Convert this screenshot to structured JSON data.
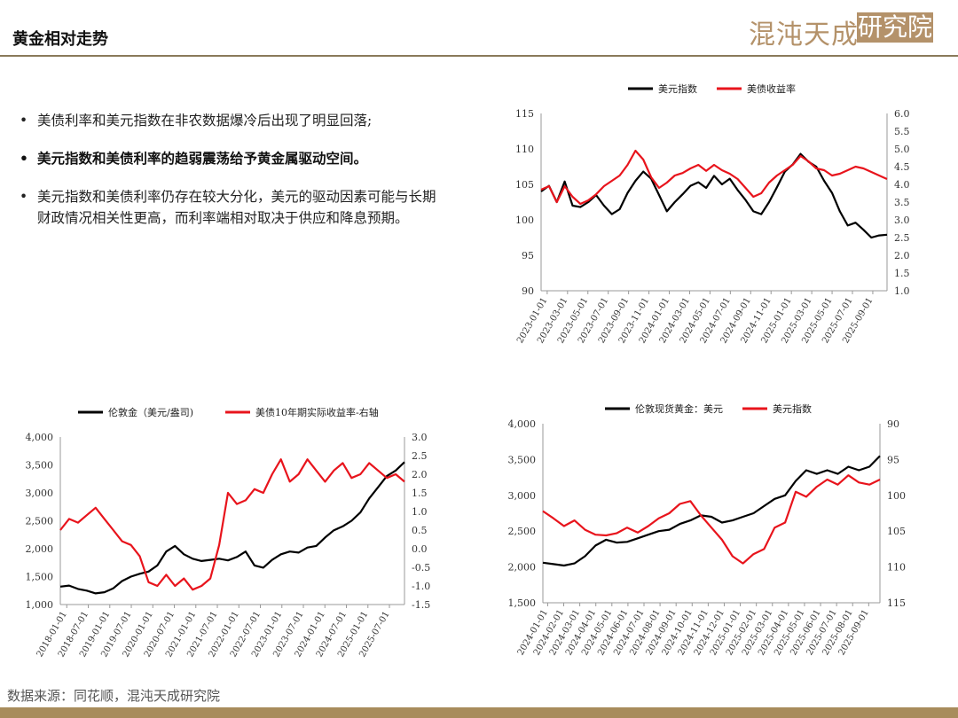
{
  "header": {
    "title": "黄金相对走势",
    "logo_left": "混沌天成",
    "logo_right": "研究院"
  },
  "bullets": [
    {
      "text": "美债利率和美元指数在非农数据爆冷后出现了明显回落;",
      "bold": false
    },
    {
      "text": "美元指数和美债利率的趋弱震荡给予黄金属驱动空间。",
      "bold": true
    },
    {
      "text": "美元指数和美债利率仍存在较大分化，美元的驱动因素可能与长期财政情况相关性更高，而利率端相对取决于供应和降息预期。",
      "bold": false
    }
  ],
  "bullet_marker": "•",
  "footer": {
    "source": "数据来源：同花顺，混沌天成研究院"
  },
  "colors": {
    "black_series": "#000000",
    "red_series": "#e8141c",
    "accent": "#a88c5c"
  },
  "chart_data": [
    {
      "id": "usd-vs-yield",
      "type": "line",
      "legend": [
        "美元指数",
        "美债收益率"
      ],
      "y_left": {
        "min": 90,
        "max": 115,
        "ticks": [
          "115",
          "110",
          "105",
          "100",
          "95",
          "90"
        ]
      },
      "y_right": {
        "min": 1.0,
        "max": 6.0,
        "ticks": [
          "6.0",
          "5.5",
          "5.0",
          "4.5",
          "4.0",
          "3.5",
          "3.0",
          "2.5",
          "2.0",
          "1.5",
          "1.0"
        ]
      },
      "x_labels": [
        "2023-01-01",
        "2023-03-01",
        "2023-05-01",
        "2023-07-01",
        "2023-09-01",
        "2023-11-01",
        "2024-01-01",
        "2024-03-01",
        "2024-05-01",
        "2024-07-01",
        "2024-09-01",
        "2024-11-01",
        "2025-01-01",
        "2025-03-01",
        "2025-05-01",
        "2025-07-01",
        "2025-09-01"
      ],
      "series": [
        {
          "name": "美元指数",
          "axis": "left",
          "values": [
            104,
            104.8,
            102.5,
            105.4,
            102,
            101.8,
            102.5,
            103.5,
            102,
            100.8,
            101.5,
            103.8,
            105.5,
            106.8,
            105.8,
            103.5,
            101.2,
            102.5,
            103.6,
            104.8,
            105.3,
            104.5,
            106.2,
            105,
            105.8,
            104.2,
            102.8,
            101.2,
            100.8,
            102.5,
            104.6,
            106.8,
            107.8,
            109.3,
            108.2,
            107.5,
            105.5,
            103.8,
            101.2,
            99.2,
            99.6,
            98.6,
            97.5,
            97.8,
            97.9
          ]
        },
        {
          "name": "美债收益率",
          "axis": "right",
          "values": [
            3.85,
            3.95,
            3.5,
            3.95,
            3.65,
            3.45,
            3.55,
            3.72,
            3.95,
            4.1,
            4.25,
            4.55,
            4.95,
            4.7,
            4.2,
            3.9,
            4.05,
            4.25,
            4.32,
            4.45,
            4.55,
            4.38,
            4.55,
            4.4,
            4.3,
            4.15,
            3.9,
            3.65,
            3.75,
            4.05,
            4.25,
            4.4,
            4.55,
            4.8,
            4.65,
            4.45,
            4.4,
            4.25,
            4.3,
            4.4,
            4.5,
            4.45,
            4.35,
            4.25,
            4.15
          ]
        }
      ]
    },
    {
      "id": "gold-vs-real-yield",
      "type": "line",
      "legend": [
        "伦敦金（美元/盎司)",
        "美债10年期实际收益率-右轴"
      ],
      "y_left": {
        "min": 1000,
        "max": 4000,
        "ticks": [
          "4,000",
          "3,500",
          "3,000",
          "2,500",
          "2,000",
          "1,500",
          "1,000"
        ]
      },
      "y_right": {
        "min": -1.5,
        "max": 3.0,
        "ticks": [
          "3.0",
          "2.5",
          "2.0",
          "1.5",
          "1.0",
          "0.5",
          "0.0",
          "-0.5",
          "-1.0",
          "-1.5"
        ]
      },
      "x_labels": [
        "2018-01-01",
        "2018-07-01",
        "2019-01-01",
        "2019-07-01",
        "2020-01-01",
        "2020-07-01",
        "2021-01-01",
        "2021-07-01",
        "2022-01-01",
        "2022-07-01",
        "2023-01-01",
        "2023-07-01",
        "2024-01-01",
        "2024-07-01",
        "2025-01-01",
        "2025-07-01"
      ],
      "series": [
        {
          "name": "伦敦金（美元/盎司)",
          "axis": "left",
          "values": [
            1320,
            1340,
            1280,
            1250,
            1200,
            1220,
            1290,
            1420,
            1500,
            1550,
            1590,
            1700,
            1950,
            2050,
            1900,
            1820,
            1780,
            1800,
            1820,
            1790,
            1850,
            1950,
            1700,
            1660,
            1800,
            1900,
            1950,
            1930,
            2020,
            2050,
            2200,
            2330,
            2400,
            2500,
            2650,
            2900,
            3100,
            3300,
            3400,
            3550
          ]
        },
        {
          "name": "美债10年期实际收益率-右轴",
          "axis": "right",
          "values": [
            0.5,
            0.8,
            0.7,
            0.9,
            1.1,
            0.8,
            0.5,
            0.2,
            0.1,
            -0.2,
            -0.9,
            -1.0,
            -0.7,
            -1.0,
            -0.8,
            -1.1,
            -1.0,
            -0.8,
            0.1,
            1.5,
            1.2,
            1.3,
            1.6,
            1.5,
            2.0,
            2.4,
            1.8,
            2.0,
            2.4,
            2.1,
            1.8,
            2.1,
            2.3,
            1.9,
            2.0,
            2.3,
            2.1,
            1.9,
            2.0,
            1.8
          ]
        }
      ]
    },
    {
      "id": "spot-gold-vs-usd",
      "type": "line",
      "legend": [
        "伦敦现货黄金：美元",
        "美元指数"
      ],
      "y_left": {
        "min": 1500,
        "max": 4000,
        "ticks": [
          "4,000",
          "3,500",
          "3,000",
          "2,500",
          "2,000",
          "1,500"
        ]
      },
      "y_right": {
        "min": 90,
        "max": 115,
        "inverted": true,
        "ticks": [
          "90",
          "95",
          "100",
          "105",
          "110",
          "115"
        ]
      },
      "x_labels": [
        "2024-01-01",
        "2024-02-01",
        "2024-03-01",
        "2024-04-01",
        "2024-05-01",
        "2024-06-01",
        "2024-07-01",
        "2024-08-01",
        "2024-09-01",
        "2024-10-01",
        "2024-11-01",
        "2024-12-01",
        "2025-01-01",
        "2025-02-01",
        "2025-03-01",
        "2025-04-01",
        "2025-05-01",
        "2025-06-01",
        "2025-07-01",
        "2025-08-01",
        "2025-09-01"
      ],
      "series": [
        {
          "name": "伦敦现货黄金：美元",
          "axis": "left",
          "values": [
            2060,
            2040,
            2020,
            2050,
            2150,
            2300,
            2380,
            2340,
            2350,
            2400,
            2450,
            2500,
            2520,
            2600,
            2650,
            2720,
            2700,
            2620,
            2650,
            2700,
            2750,
            2850,
            2950,
            3000,
            3200,
            3350,
            3300,
            3350,
            3300,
            3400,
            3350,
            3400,
            3550
          ]
        },
        {
          "name": "美元指数",
          "axis": "right",
          "values": [
            102.2,
            103.2,
            104.3,
            103.5,
            104.8,
            105.5,
            105.6,
            105.3,
            104.5,
            105.2,
            104.3,
            103.2,
            102.5,
            101.2,
            100.8,
            102.8,
            104.5,
            106.2,
            108.5,
            109.5,
            108.2,
            107.5,
            104.5,
            103.8,
            99.5,
            100.2,
            98.8,
            97.8,
            98.5,
            97.2,
            98.2,
            98.5,
            97.8
          ]
        }
      ]
    }
  ]
}
